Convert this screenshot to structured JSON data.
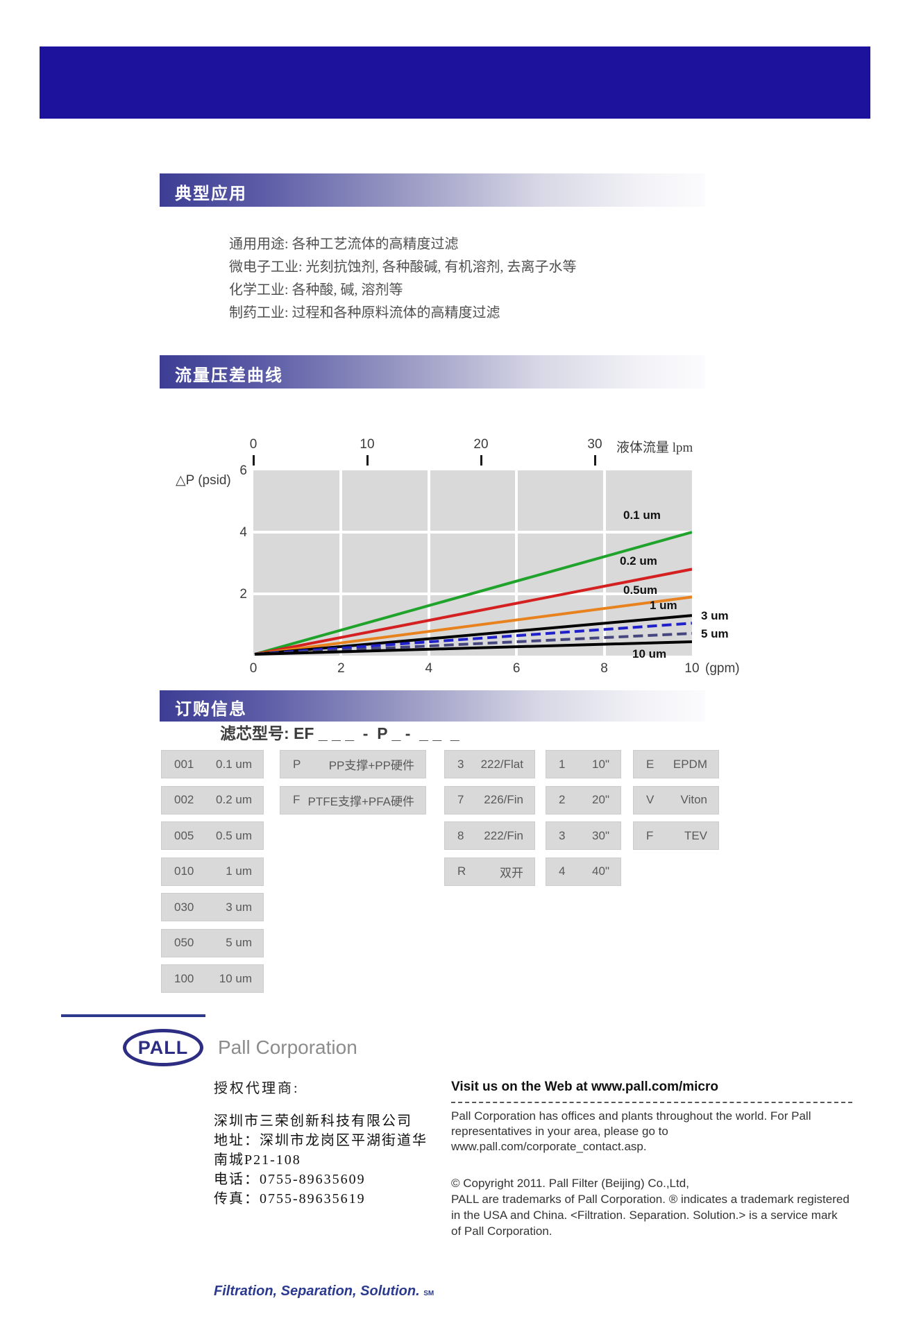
{
  "header": {
    "band_color": "#1c129b"
  },
  "sections": {
    "applications": {
      "title": "典型应用",
      "lines": [
        "通用用途: 各种工艺流体的高精度过滤",
        "微电子工业: 光刻抗蚀剂, 各种酸碱, 有机溶剂, 去离子水等",
        "化学工业: 各种酸, 碱, 溶剂等",
        "制药工业: 过程和各种原料流体的高精度过滤"
      ]
    },
    "flow_curve": {
      "title": "流量压差曲线"
    },
    "ordering": {
      "title": "订购信息",
      "model_label": "滤芯型号: EF _ _ _  -  P _ -  _ _  _"
    }
  },
  "chart_data": {
    "type": "line",
    "title": "流量压差曲线",
    "plot_bg": "#d9d9d9",
    "x_bottom": {
      "label": "(gpm)",
      "ticks": [
        0,
        2,
        4,
        6,
        8,
        10
      ],
      "range": [
        0,
        10
      ]
    },
    "x_top": {
      "label": "液体流量 lpm",
      "ticks": [
        0,
        10,
        20,
        30
      ]
    },
    "y": {
      "label": "△P (psid)",
      "ticks_shown": [
        6,
        4,
        2
      ],
      "range": [
        0,
        6
      ]
    },
    "grid": {
      "vertical_gpm": [
        2,
        4,
        6,
        8
      ],
      "horizontal_psid": [
        4,
        2
      ]
    },
    "series": [
      {
        "name": "0.1 um",
        "color": "#1fa32b",
        "dash": "solid",
        "x": [
          0,
          10
        ],
        "y_psid": [
          0,
          4.0
        ]
      },
      {
        "name": "0.2 um",
        "color": "#d42020",
        "dash": "solid",
        "x": [
          0,
          10
        ],
        "y_psid": [
          0,
          2.8
        ]
      },
      {
        "name": "0.5um",
        "color": "#e8821e",
        "dash": "solid",
        "x": [
          0,
          10
        ],
        "y_psid": [
          0,
          1.9
        ]
      },
      {
        "name": "1 um",
        "color": "#000000",
        "dash": "solid",
        "x": [
          0,
          10
        ],
        "y_psid": [
          0,
          1.3
        ]
      },
      {
        "name": "3 um",
        "color": "#2121cc",
        "dash": "dashed",
        "x": [
          0,
          10
        ],
        "y_psid": [
          0,
          1.05
        ]
      },
      {
        "name": "5 um",
        "color": "#46467e",
        "dash": "dashed",
        "x": [
          0,
          10
        ],
        "y_psid": [
          0,
          0.72
        ]
      },
      {
        "name": "10 um",
        "color": "#000000",
        "dash": "solid",
        "x": [
          0,
          10
        ],
        "y_psid": [
          0,
          0.45
        ]
      }
    ]
  },
  "ordering_tables": {
    "columns": [
      {
        "id": "micron-rating",
        "rows": [
          {
            "code": "001",
            "label": "0.1 um"
          },
          {
            "code": "002",
            "label": "0.2 um"
          },
          {
            "code": "005",
            "label": "0.5 um"
          },
          {
            "code": "010",
            "label": "1 um"
          },
          {
            "code": "030",
            "label": "3 um"
          },
          {
            "code": "050",
            "label": "5 um"
          },
          {
            "code": "100",
            "label": "10 um"
          }
        ]
      },
      {
        "id": "support-hardware",
        "rows": [
          {
            "code": "P",
            "label": "PP支撑+PP硬件"
          },
          {
            "code": "F",
            "label": "PTFE支撑+PFA硬件"
          }
        ]
      },
      {
        "id": "end-configuration",
        "rows": [
          {
            "code": "3",
            "label": "222/Flat"
          },
          {
            "code": "7",
            "label": "226/Fin"
          },
          {
            "code": "8",
            "label": "222/Fin"
          },
          {
            "code": "R",
            "label": "双开"
          }
        ]
      },
      {
        "id": "length",
        "rows": [
          {
            "code": "1",
            "label": "10\""
          },
          {
            "code": "2",
            "label": "20\""
          },
          {
            "code": "3",
            "label": "30\""
          },
          {
            "code": "4",
            "label": "40\""
          }
        ]
      },
      {
        "id": "o-ring",
        "rows": [
          {
            "code": "E",
            "label": "EPDM"
          },
          {
            "code": "V",
            "label": "Viton"
          },
          {
            "code": "F",
            "label": "TEV"
          }
        ]
      }
    ]
  },
  "footer": {
    "logo_text": "PALL",
    "company": "Pall Corporation",
    "agent_label": "授权代理商:",
    "address_lines": [
      "深圳市三荣创新科技有限公司",
      "地址：深圳市龙岗区平湖街道华",
      "南城P21-108",
      "电话：0755-89635609",
      "传真：0755-89635619"
    ],
    "web_title": "Visit us on the Web at www.pall.com/micro",
    "web_lines": [
      "Pall Corporation has offices and plants throughout the world. For Pall",
      "representatives in your area, please go to",
      "www.pall.com/corporate_contact.asp."
    ],
    "copyright_lines": [
      "© Copyright 2011. Pall Filter (Beijing) Co.,Ltd,",
      "PALL are trademarks of Pall Corporation. ® indicates a trademark registered",
      "in the USA and China.    <Filtration. Separation. Solution.> is a service mark",
      "of Pall Corporation."
    ],
    "tagline": "Filtration, Separation, Solution.",
    "tagline_suffix": "SM"
  }
}
